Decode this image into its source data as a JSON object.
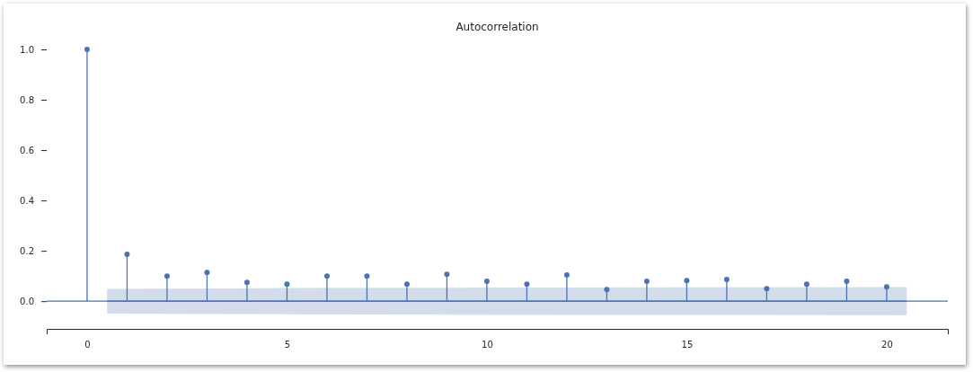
{
  "chart_data": {
    "type": "lollipop",
    "title": "Autocorrelation",
    "x": [
      0,
      1,
      2,
      3,
      4,
      5,
      6,
      7,
      8,
      9,
      10,
      11,
      12,
      13,
      14,
      15,
      16,
      17,
      18,
      19,
      20
    ],
    "series": [
      {
        "color": "#4c72b0",
        "marker": "circle",
        "values": [
          1.0,
          0.186,
          0.1,
          0.114,
          0.075,
          0.068,
          0.1,
          0.1,
          0.068,
          0.107,
          0.079,
          0.068,
          0.104,
          0.046,
          0.079,
          0.082,
          0.086,
          0.05,
          0.068,
          0.079,
          0.057
        ]
      },
      {
        "type": "line",
        "color": "#4c72b0",
        "x": [
          0.5,
          5,
          10,
          15,
          20.5
        ],
        "values": [
          0,
          0,
          0,
          0,
          0
        ],
        "lower": [
          -0.049,
          -0.052,
          -0.054,
          -0.055,
          -0.056
        ],
        "upper": [
          0.049,
          0.052,
          0.054,
          0.055,
          0.056
        ]
      }
    ],
    "ref_lines": [
      {
        "axis": "y",
        "value": 0,
        "color": "#4c72b0"
      }
    ],
    "xlim": [
      -1.01,
      21.53
    ],
    "xticks": [
      0,
      5,
      10,
      15,
      20
    ],
    "ylim": [
      -0.11,
      1.0
    ],
    "yticks": [
      {
        "value": 0,
        "label": "0.0"
      },
      {
        "value": 0.2,
        "label": "0.2"
      },
      {
        "value": 0.4,
        "label": "0.4"
      },
      {
        "value": 0.6,
        "label": "0.6"
      },
      {
        "value": 0.8,
        "label": "0.8"
      },
      {
        "value": 1.0,
        "label": "1.0"
      }
    ],
    "grid": false
  }
}
